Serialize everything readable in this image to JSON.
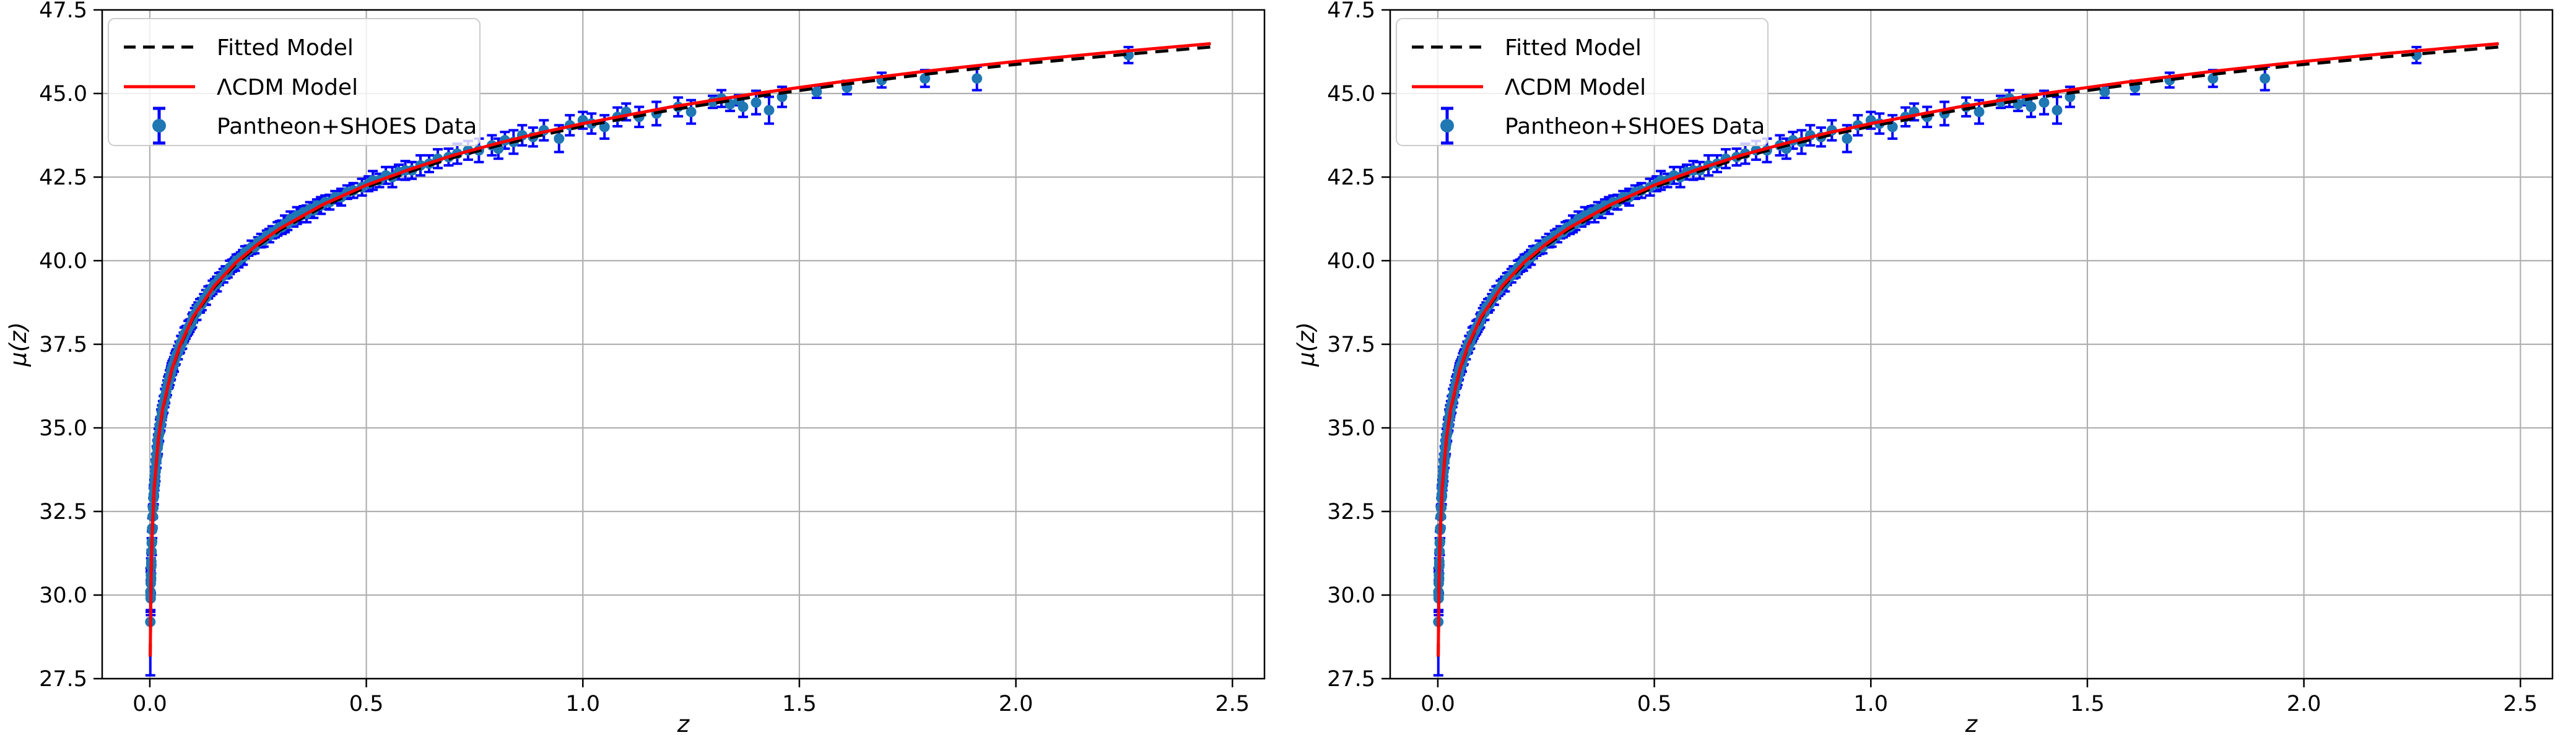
{
  "figure": {
    "background": "#ffffff",
    "panels_count": 2
  },
  "chart_data": [
    {
      "type": "scatter",
      "title": "",
      "xlabel": "z",
      "ylabel": "μ(z)",
      "xlim": [
        -0.11,
        2.574
      ],
      "ylim": [
        27.5,
        47.5
      ],
      "xticks": [
        0.0,
        0.5,
        1.0,
        1.5,
        2.0,
        2.5
      ],
      "yticks": [
        27.5,
        30.0,
        32.5,
        35.0,
        37.5,
        40.0,
        42.5,
        45.0,
        47.5
      ],
      "grid": true,
      "grid_color": "#b0b0b0",
      "legend_position": "upper left",
      "legend": [
        {
          "label": "Fitted Model",
          "style": "dashed-line",
          "color": "#000000"
        },
        {
          "label": "ΛCDM Model",
          "style": "solid-line",
          "color": "#ff0000"
        },
        {
          "label": "Pantheon+SHOES Data",
          "style": "errorbar-marker",
          "marker_color": "#1f77b4",
          "errorbar_color": "#0000ff"
        }
      ],
      "curves": {
        "z": [
          0.001,
          0.003,
          0.005,
          0.01,
          0.02,
          0.03,
          0.05,
          0.07,
          0.1,
          0.15,
          0.2,
          0.25,
          0.3,
          0.4,
          0.5,
          0.6,
          0.7,
          0.8,
          0.9,
          1.0,
          1.2,
          1.4,
          1.6,
          1.8,
          2.0,
          2.2,
          2.45
        ],
        "lcdm_mu": [
          28.16,
          30.55,
          31.66,
          33.17,
          34.69,
          35.58,
          36.71,
          37.47,
          38.32,
          39.26,
          39.96,
          40.5,
          40.96,
          41.68,
          42.26,
          42.73,
          43.15,
          43.5,
          43.82,
          44.1,
          44.59,
          45.0,
          45.36,
          45.68,
          45.96,
          46.21,
          46.49
        ],
        "fitted_mu": [
          28.16,
          30.55,
          31.66,
          33.17,
          34.68,
          35.56,
          36.69,
          37.44,
          38.29,
          39.22,
          39.92,
          40.45,
          40.91,
          41.62,
          42.2,
          42.66,
          43.08,
          43.43,
          43.74,
          44.02,
          44.5,
          44.91,
          45.27,
          45.59,
          45.87,
          46.11,
          46.39
        ]
      },
      "points": [
        [
          0.0012,
          29.2,
          1.6
        ],
        [
          0.0015,
          30.1,
          0.6
        ],
        [
          0.0018,
          30.0,
          0.45
        ],
        [
          0.002,
          29.9,
          0.5
        ],
        [
          0.0022,
          30.35,
          0.4
        ],
        [
          0.0025,
          30.6,
          0.5
        ],
        [
          0.003,
          30.5,
          0.45
        ],
        [
          0.0032,
          30.85,
          0.4
        ],
        [
          0.0035,
          31.0,
          0.35
        ],
        [
          0.004,
          31.3,
          0.4
        ],
        [
          0.0045,
          31.55,
          0.35
        ],
        [
          0.005,
          31.6,
          0.4
        ],
        [
          0.0055,
          31.95,
          0.35
        ],
        [
          0.006,
          32.0,
          0.3
        ],
        [
          0.0065,
          32.35,
          0.3
        ],
        [
          0.007,
          32.35,
          0.35
        ],
        [
          0.0075,
          32.6,
          0.3
        ],
        [
          0.008,
          32.62,
          0.28
        ],
        [
          0.0085,
          32.9,
          0.3
        ],
        [
          0.009,
          33.0,
          0.28
        ],
        [
          0.0095,
          33.0,
          0.3
        ],
        [
          0.01,
          33.2,
          0.25
        ],
        [
          0.011,
          33.35,
          0.22
        ],
        [
          0.0115,
          33.55,
          0.28
        ],
        [
          0.012,
          33.5,
          0.2
        ],
        [
          0.013,
          33.8,
          0.25
        ],
        [
          0.0135,
          33.7,
          0.3
        ],
        [
          0.014,
          34.0,
          0.22
        ],
        [
          0.015,
          34.0,
          0.2
        ],
        [
          0.0155,
          34.2,
          0.25
        ],
        [
          0.016,
          34.1,
          0.3
        ],
        [
          0.017,
          34.4,
          0.22
        ],
        [
          0.018,
          34.4,
          0.25
        ],
        [
          0.0185,
          34.6,
          0.2
        ],
        [
          0.019,
          34.5,
          0.28
        ],
        [
          0.02,
          34.75,
          0.22
        ],
        [
          0.021,
          34.8,
          0.18
        ],
        [
          0.022,
          34.85,
          0.25
        ],
        [
          0.023,
          35.05,
          0.2
        ],
        [
          0.024,
          35.1,
          0.22
        ],
        [
          0.025,
          35.1,
          0.18
        ],
        [
          0.026,
          35.3,
          0.25
        ],
        [
          0.027,
          35.3,
          0.2
        ],
        [
          0.028,
          35.45,
          0.22
        ],
        [
          0.029,
          35.5,
          0.18
        ],
        [
          0.03,
          35.6,
          0.2
        ],
        [
          0.032,
          35.7,
          0.25
        ],
        [
          0.034,
          35.8,
          0.18
        ],
        [
          0.035,
          35.95,
          0.22
        ],
        [
          0.036,
          35.95,
          0.2
        ],
        [
          0.038,
          36.1,
          0.18
        ],
        [
          0.04,
          36.2,
          0.22
        ],
        [
          0.042,
          36.35,
          0.18
        ],
        [
          0.044,
          36.4,
          0.2
        ],
        [
          0.046,
          36.5,
          0.22
        ],
        [
          0.048,
          36.6,
          0.18
        ],
        [
          0.049,
          36.65,
          0.2
        ],
        [
          0.05,
          36.75,
          0.18
        ],
        [
          0.052,
          36.8,
          0.2
        ],
        [
          0.054,
          36.9,
          0.15
        ],
        [
          0.056,
          36.9,
          0.22
        ],
        [
          0.058,
          37.05,
          0.18
        ],
        [
          0.06,
          37.1,
          0.2
        ],
        [
          0.062,
          37.2,
          0.15
        ],
        [
          0.065,
          37.25,
          0.2
        ],
        [
          0.068,
          37.4,
          0.18
        ],
        [
          0.07,
          37.4,
          0.15
        ],
        [
          0.072,
          37.55,
          0.2
        ],
        [
          0.075,
          37.55,
          0.18
        ],
        [
          0.078,
          37.7,
          0.15
        ],
        [
          0.08,
          37.8,
          0.2
        ],
        [
          0.083,
          37.85,
          0.18
        ],
        [
          0.086,
          37.9,
          0.15
        ],
        [
          0.089,
          38.0,
          0.2
        ],
        [
          0.092,
          38.05,
          0.18
        ],
        [
          0.095,
          38.1,
          0.15
        ],
        [
          0.098,
          38.2,
          0.2
        ],
        [
          0.1,
          38.3,
          0.15
        ],
        [
          0.104,
          38.4,
          0.18
        ],
        [
          0.108,
          38.45,
          0.22
        ],
        [
          0.112,
          38.6,
          0.15
        ],
        [
          0.116,
          38.65,
          0.2
        ],
        [
          0.12,
          38.7,
          0.18
        ],
        [
          0.125,
          38.85,
          0.15
        ],
        [
          0.13,
          38.9,
          0.22
        ],
        [
          0.135,
          39.05,
          0.18
        ],
        [
          0.14,
          39.1,
          0.15
        ],
        [
          0.145,
          39.2,
          0.2
        ],
        [
          0.15,
          39.3,
          0.15
        ],
        [
          0.155,
          39.3,
          0.22
        ],
        [
          0.16,
          39.45,
          0.18
        ],
        [
          0.165,
          39.5,
          0.15
        ],
        [
          0.17,
          39.55,
          0.2
        ],
        [
          0.175,
          39.65,
          0.18
        ],
        [
          0.18,
          39.65,
          0.15
        ],
        [
          0.185,
          39.8,
          0.2
        ],
        [
          0.19,
          39.85,
          0.18
        ],
        [
          0.194,
          39.9,
          0.15
        ],
        [
          0.197,
          39.9,
          0.2
        ],
        [
          0.2,
          40.0,
          0.18
        ],
        [
          0.205,
          40.0,
          0.2
        ],
        [
          0.21,
          40.1,
          0.15
        ],
        [
          0.215,
          40.1,
          0.22
        ],
        [
          0.22,
          40.25,
          0.18
        ],
        [
          0.228,
          40.3,
          0.15
        ],
        [
          0.235,
          40.4,
          0.2
        ],
        [
          0.242,
          40.4,
          0.18
        ],
        [
          0.25,
          40.55,
          0.15
        ],
        [
          0.257,
          40.6,
          0.2
        ],
        [
          0.263,
          40.6,
          0.18
        ],
        [
          0.27,
          40.75,
          0.15
        ],
        [
          0.276,
          40.75,
          0.2
        ],
        [
          0.283,
          40.85,
          0.18
        ],
        [
          0.289,
          40.85,
          0.15
        ],
        [
          0.295,
          40.95,
          0.2
        ],
        [
          0.3,
          41.0,
          0.18
        ],
        [
          0.305,
          41.0,
          0.2
        ],
        [
          0.312,
          41.1,
          0.25
        ],
        [
          0.318,
          41.1,
          0.18
        ],
        [
          0.325,
          41.25,
          0.22
        ],
        [
          0.332,
          41.2,
          0.18
        ],
        [
          0.34,
          41.35,
          0.25
        ],
        [
          0.348,
          41.35,
          0.2
        ],
        [
          0.355,
          41.45,
          0.18
        ],
        [
          0.362,
          41.4,
          0.25
        ],
        [
          0.37,
          41.55,
          0.2
        ],
        [
          0.378,
          41.5,
          0.22
        ],
        [
          0.386,
          41.65,
          0.18
        ],
        [
          0.395,
          41.65,
          0.25
        ],
        [
          0.405,
          41.75,
          0.2
        ],
        [
          0.415,
          41.75,
          0.22
        ],
        [
          0.428,
          41.9,
          0.18
        ],
        [
          0.442,
          41.9,
          0.25
        ],
        [
          0.456,
          42.05,
          0.2
        ],
        [
          0.47,
          42.1,
          0.22
        ],
        [
          0.49,
          42.2,
          0.25
        ],
        [
          0.505,
          42.3,
          0.22
        ],
        [
          0.515,
          42.4,
          0.28
        ],
        [
          0.53,
          42.4,
          0.2
        ],
        [
          0.545,
          42.55,
          0.25
        ],
        [
          0.56,
          42.5,
          0.3
        ],
        [
          0.575,
          42.65,
          0.22
        ],
        [
          0.59,
          42.7,
          0.28
        ],
        [
          0.605,
          42.7,
          0.25
        ],
        [
          0.625,
          42.85,
          0.3
        ],
        [
          0.645,
          42.9,
          0.25
        ],
        [
          0.665,
          43.05,
          0.28
        ],
        [
          0.69,
          43.1,
          0.25
        ],
        [
          0.71,
          43.2,
          0.3
        ],
        [
          0.735,
          43.3,
          0.28
        ],
        [
          0.76,
          43.3,
          0.35
        ],
        [
          0.79,
          43.45,
          0.3
        ],
        [
          0.805,
          43.35,
          0.3
        ],
        [
          0.82,
          43.6,
          0.25
        ],
        [
          0.84,
          43.55,
          0.35
        ],
        [
          0.86,
          43.75,
          0.3
        ],
        [
          0.885,
          43.7,
          0.28
        ],
        [
          0.91,
          43.9,
          0.3
        ],
        [
          0.945,
          43.65,
          0.4
        ],
        [
          0.97,
          44.05,
          0.3
        ],
        [
          1.0,
          44.2,
          0.25
        ],
        [
          1.02,
          44.1,
          0.3
        ],
        [
          1.05,
          44.0,
          0.35
        ],
        [
          1.08,
          44.3,
          0.28
        ],
        [
          1.1,
          44.45,
          0.25
        ],
        [
          1.13,
          44.3,
          0.3
        ],
        [
          1.17,
          44.4,
          0.35
        ],
        [
          1.22,
          44.6,
          0.28
        ],
        [
          1.25,
          44.45,
          0.35
        ],
        [
          1.3,
          44.75,
          0.18
        ],
        [
          1.32,
          44.85,
          0.25
        ],
        [
          1.34,
          44.68,
          0.2
        ],
        [
          1.36,
          44.8,
          0.15
        ],
        [
          1.37,
          44.6,
          0.3
        ],
        [
          1.4,
          44.73,
          0.35
        ],
        [
          1.43,
          44.5,
          0.4
        ],
        [
          1.46,
          44.9,
          0.3
        ],
        [
          1.54,
          45.05,
          0.18
        ],
        [
          1.61,
          45.18,
          0.2
        ],
        [
          1.69,
          45.4,
          0.22
        ],
        [
          1.79,
          45.45,
          0.25
        ],
        [
          1.91,
          45.45,
          0.35
        ],
        [
          2.26,
          46.15,
          0.24
        ]
      ],
      "colors": {
        "marker": "#1f77b4",
        "errorbar": "#0000ff",
        "fitted": "#000000",
        "lcdm": "#ff0000",
        "grid": "#b0b0b0",
        "spine": "#000000",
        "legend_border": "#cccccc"
      }
    },
    {
      "type": "scatter",
      "title": "",
      "xlabel": "z",
      "ylabel": "μ(z)",
      "xlim": [
        -0.11,
        2.574
      ],
      "ylim": [
        27.5,
        47.5
      ],
      "xticks": [
        0.0,
        0.5,
        1.0,
        1.5,
        2.0,
        2.5
      ],
      "yticks": [
        27.5,
        30.0,
        32.5,
        35.0,
        37.5,
        40.0,
        42.5,
        45.0,
        47.5
      ],
      "grid": true,
      "grid_color": "#b0b0b0",
      "legend_position": "upper left",
      "legend": [
        {
          "label": "Fitted Model",
          "style": "dashed-line",
          "color": "#000000"
        },
        {
          "label": "ΛCDM Model",
          "style": "solid-line",
          "color": "#ff0000"
        },
        {
          "label": "Pantheon+SHOES Data",
          "style": "errorbar-marker",
          "marker_color": "#1f77b4",
          "errorbar_color": "#0000ff"
        }
      ],
      "same_series_as": 0,
      "colors": {
        "marker": "#1f77b4",
        "errorbar": "#0000ff",
        "fitted": "#000000",
        "lcdm": "#ff0000",
        "grid": "#b0b0b0",
        "spine": "#000000",
        "legend_border": "#cccccc"
      }
    }
  ]
}
